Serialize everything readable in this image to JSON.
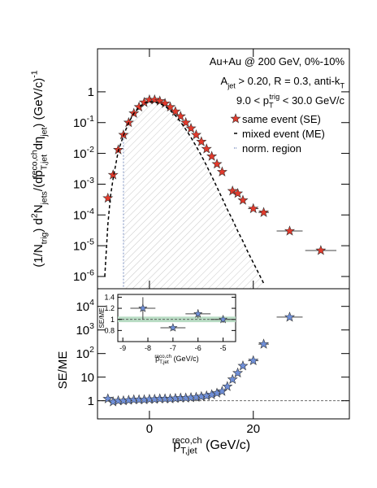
{
  "chart_data": [
    {
      "type": "scatter",
      "ylog": true,
      "y_label": "(1/N_{trig}) d^{2}N_{jets}/(dp_{T,jet}^{reco,ch}dη_{jet})  (GeV/c)^{-1}",
      "annotations": [
        "Au+Au @ 200 GeV, 0%-10%",
        "A_{jet} > 0.20, R = 0.3, anti-k_{T}",
        "9.0 < p_{T}^{trig} < 30.0 GeV/c"
      ],
      "xlim": [
        -10,
        38.5
      ],
      "ylim": [
        4e-07,
        25
      ],
      "yticks": [
        {
          "value": 1e-06,
          "label": "10^{-6}"
        },
        {
          "value": 1e-05,
          "label": "10^{-5}"
        },
        {
          "value": 0.0001,
          "label": "10^{-4}"
        },
        {
          "value": 0.001,
          "label": "10^{-3}"
        },
        {
          "value": 0.01,
          "label": "10^{-2}"
        },
        {
          "value": 0.1,
          "label": "10^{-1}"
        },
        1
      ],
      "series": [
        {
          "name": "same event (SE)",
          "style": "star",
          "color": "#e23a2c",
          "x": [
            -8,
            -7,
            -6,
            -5,
            -4,
            -3,
            -2,
            -1,
            0,
            1,
            2,
            3,
            4,
            5,
            6,
            7,
            8,
            9,
            10,
            11,
            12,
            13,
            14,
            16,
            17,
            18,
            20,
            22,
            27,
            33
          ],
          "xerr": [
            0.5,
            0.5,
            0.5,
            0.5,
            0.5,
            0.5,
            0.5,
            0.5,
            0.5,
            0.5,
            0.5,
            0.5,
            0.5,
            0.5,
            0.5,
            0.5,
            0.5,
            0.5,
            0.5,
            0.5,
            0.5,
            0.5,
            0.5,
            0.5,
            0.5,
            0.5,
            1,
            1,
            2.5,
            3
          ],
          "values": [
            0.00035,
            0.002,
            0.013,
            0.04,
            0.1,
            0.2,
            0.32,
            0.45,
            0.55,
            0.55,
            0.5,
            0.42,
            0.32,
            0.23,
            0.16,
            0.1,
            0.065,
            0.04,
            0.024,
            0.014,
            0.008,
            0.0045,
            0.0025,
            0.0006,
            0.0005,
            0.0003,
            0.00016,
            0.00012,
            3e-05,
            7e-06
          ]
        },
        {
          "name": "mixed event (ME)",
          "style": "dashed",
          "color": "#000000",
          "x": [
            -8.6,
            -8,
            -7.5,
            -7,
            -6,
            -5,
            -4,
            -3,
            -2,
            -1,
            0,
            1,
            2,
            3,
            4,
            5,
            6,
            7,
            8,
            9,
            10,
            11,
            12,
            13,
            14,
            15,
            16,
            17,
            18,
            19,
            20,
            21,
            22
          ],
          "values": [
            1e-06,
            5e-05,
            0.0004,
            0.0015,
            0.012,
            0.038,
            0.1,
            0.2,
            0.32,
            0.43,
            0.48,
            0.47,
            0.42,
            0.34,
            0.25,
            0.17,
            0.105,
            0.06,
            0.033,
            0.017,
            0.0085,
            0.004,
            0.0018,
            0.0008,
            0.00035,
            0.00015,
            7e-05,
            3e-05,
            1.4e-05,
            6e-06,
            2.8e-06,
            1.3e-06,
            6e-07
          ]
        }
      ],
      "norm_region": {
        "name": "norm. region",
        "x": -5,
        "color": "#7a8fc0"
      }
    },
    {
      "type": "scatter",
      "ylog": true,
      "y_label": "SE/ME",
      "x_label": "p_{T,jet}^{reco,ch} (GeV/c)",
      "xlim": [
        -10,
        38.5
      ],
      "ylim": [
        0.17,
        56000
      ],
      "xticks": [
        0,
        20
      ],
      "yticks": [
        1,
        10,
        {
          "value": 100,
          "label": "10^{2}"
        },
        {
          "value": 1000,
          "label": "10^{3}"
        },
        {
          "value": 10000,
          "label": "10^{4}"
        }
      ],
      "ref_line": 1,
      "series": [
        {
          "name": "SE/ME",
          "style": "star",
          "color": "#6f8fd8",
          "x": [
            -8,
            -7,
            -6,
            -5,
            -4,
            -3,
            -2,
            -1,
            0,
            1,
            2,
            3,
            4,
            5,
            6,
            7,
            8,
            9,
            10,
            11,
            12,
            13,
            14,
            15,
            16,
            17,
            18,
            20,
            22,
            27
          ],
          "xerr": [
            0.5,
            0.5,
            0.5,
            0.5,
            0.5,
            0.5,
            0.5,
            0.5,
            0.5,
            0.5,
            0.5,
            0.5,
            0.5,
            0.5,
            0.5,
            0.5,
            0.5,
            0.5,
            0.5,
            0.5,
            0.5,
            0.5,
            0.5,
            0.5,
            0.5,
            0.5,
            0.5,
            1,
            1,
            2.5
          ],
          "values": [
            1.2,
            0.9,
            1.0,
            1.0,
            1.05,
            1.1,
            1.1,
            1.1,
            1.15,
            1.15,
            1.2,
            1.2,
            1.2,
            1.25,
            1.3,
            1.3,
            1.35,
            1.4,
            1.5,
            1.6,
            1.8,
            2.1,
            2.5,
            4,
            8,
            15,
            30,
            50,
            250,
            3500
          ]
        }
      ]
    },
    {
      "type": "scatter",
      "y_label": "SE/ME",
      "x_label": "p_{T,jet}^{reco,ch} (GeV/c)",
      "xlim": [
        -9.2,
        -4.5
      ],
      "ylim": [
        0.6,
        1.45
      ],
      "xticks": [
        -9,
        -8,
        -7,
        -6,
        -5
      ],
      "yticks": [
        0.8,
        1,
        1.2,
        1.4
      ],
      "ref_line": 1,
      "band": [
        0.95,
        1.05
      ],
      "band_color": "#b9dcc4",
      "series": [
        {
          "name": "SE/ME",
          "style": "star",
          "color": "#6f8fd8",
          "x": [
            -8.2,
            -7,
            -6,
            -5
          ],
          "xerr": [
            0.5,
            0.5,
            0.5,
            0.5
          ],
          "yerr": [
            0.2,
            0.05,
            0.08,
            0.06
          ],
          "values": [
            1.2,
            0.85,
            1.1,
            1.0
          ]
        }
      ]
    }
  ]
}
